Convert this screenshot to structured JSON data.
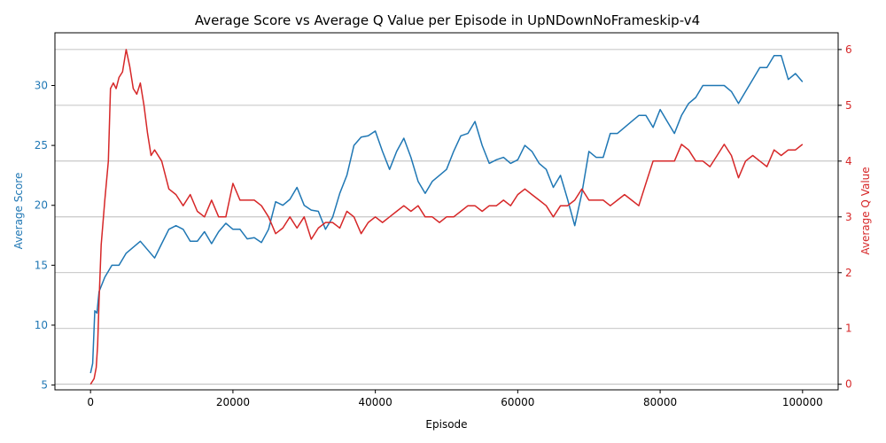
{
  "chart_data": {
    "type": "line",
    "title": "Average Score vs Average Q Value per Episode in UpNDownNoFrameskip-v4",
    "xlabel": "Episode",
    "xlim": [
      -5000,
      105000
    ],
    "xticks": [
      0,
      20000,
      40000,
      60000,
      80000,
      100000
    ],
    "xtick_labels": [
      "0",
      "20000",
      "40000",
      "60000",
      "80000",
      "100000"
    ],
    "grid": "horizontal lines on right axis",
    "legend": "none",
    "left_axis": {
      "label": "Average Score",
      "color": "#1f77b4",
      "ylim": [
        4.6,
        34.4
      ],
      "ticks": [
        5,
        10,
        15,
        20,
        25,
        30
      ],
      "tick_labels": [
        "5",
        "10",
        "15",
        "20",
        "25",
        "30"
      ]
    },
    "right_axis": {
      "label": "Average Q Value",
      "color": "#d62728",
      "ylim": [
        -0.1,
        6.3
      ],
      "ticks": [
        0,
        1,
        2,
        3,
        4,
        5,
        6
      ],
      "tick_labels": [
        "0",
        "1",
        "2",
        "3",
        "4",
        "5",
        "6"
      ]
    },
    "series": [
      {
        "axis": "left",
        "color": "#1f77b4",
        "points": [
          [
            0,
            6.0
          ],
          [
            300,
            6.8
          ],
          [
            600,
            11.2
          ],
          [
            900,
            11.0
          ],
          [
            1200,
            12.8
          ],
          [
            2000,
            14.0
          ],
          [
            3000,
            15.0
          ],
          [
            4000,
            15.0
          ],
          [
            5000,
            16.0
          ],
          [
            6000,
            16.5
          ],
          [
            7000,
            17.0
          ],
          [
            8000,
            16.3
          ],
          [
            9000,
            15.6
          ],
          [
            10000,
            16.8
          ],
          [
            11000,
            18.0
          ],
          [
            12000,
            18.3
          ],
          [
            13000,
            18.0
          ],
          [
            14000,
            17.0
          ],
          [
            15000,
            17.0
          ],
          [
            16000,
            17.8
          ],
          [
            17000,
            16.8
          ],
          [
            18000,
            17.8
          ],
          [
            19000,
            18.5
          ],
          [
            20000,
            18.0
          ],
          [
            21000,
            18.0
          ],
          [
            22000,
            17.2
          ],
          [
            23000,
            17.3
          ],
          [
            24000,
            16.9
          ],
          [
            25000,
            18.0
          ],
          [
            26000,
            20.3
          ],
          [
            27000,
            20.0
          ],
          [
            28000,
            20.5
          ],
          [
            29000,
            21.5
          ],
          [
            30000,
            20.0
          ],
          [
            31000,
            19.6
          ],
          [
            32000,
            19.5
          ],
          [
            33000,
            18.0
          ],
          [
            34000,
            19.0
          ],
          [
            35000,
            21.0
          ],
          [
            36000,
            22.5
          ],
          [
            37000,
            25.0
          ],
          [
            38000,
            25.7
          ],
          [
            39000,
            25.8
          ],
          [
            40000,
            26.2
          ],
          [
            41000,
            24.5
          ],
          [
            42000,
            23.0
          ],
          [
            43000,
            24.5
          ],
          [
            44000,
            25.6
          ],
          [
            45000,
            24.0
          ],
          [
            46000,
            22.0
          ],
          [
            47000,
            21.0
          ],
          [
            48000,
            22.0
          ],
          [
            49000,
            22.5
          ],
          [
            50000,
            23.0
          ],
          [
            51000,
            24.5
          ],
          [
            52000,
            25.8
          ],
          [
            53000,
            26.0
          ],
          [
            54000,
            27.0
          ],
          [
            55000,
            25.0
          ],
          [
            56000,
            23.5
          ],
          [
            57000,
            23.8
          ],
          [
            58000,
            24.0
          ],
          [
            59000,
            23.5
          ],
          [
            60000,
            23.8
          ],
          [
            61000,
            25.0
          ],
          [
            62000,
            24.5
          ],
          [
            63000,
            23.5
          ],
          [
            64000,
            23.0
          ],
          [
            65000,
            21.5
          ],
          [
            66000,
            22.5
          ],
          [
            67000,
            20.5
          ],
          [
            68000,
            18.3
          ],
          [
            69000,
            21.0
          ],
          [
            70000,
            24.5
          ],
          [
            71000,
            24.0
          ],
          [
            72000,
            24.0
          ],
          [
            73000,
            26.0
          ],
          [
            74000,
            26.0
          ],
          [
            75000,
            26.5
          ],
          [
            76000,
            27.0
          ],
          [
            77000,
            27.5
          ],
          [
            78000,
            27.5
          ],
          [
            79000,
            26.5
          ],
          [
            80000,
            28.0
          ],
          [
            81000,
            27.0
          ],
          [
            82000,
            26.0
          ],
          [
            83000,
            27.5
          ],
          [
            84000,
            28.5
          ],
          [
            85000,
            29.0
          ],
          [
            86000,
            30.0
          ],
          [
            87000,
            30.0
          ],
          [
            88000,
            30.0
          ],
          [
            89000,
            30.0
          ],
          [
            90000,
            29.5
          ],
          [
            91000,
            28.5
          ],
          [
            92000,
            29.5
          ],
          [
            93000,
            30.5
          ],
          [
            94000,
            31.5
          ],
          [
            95000,
            31.5
          ],
          [
            96000,
            32.5
          ],
          [
            97000,
            32.5
          ],
          [
            98000,
            30.5
          ],
          [
            99000,
            31.0
          ],
          [
            100000,
            30.3
          ]
        ]
      },
      {
        "axis": "right",
        "color": "#d62728",
        "points": [
          [
            0,
            0.0
          ],
          [
            500,
            0.1
          ],
          [
            800,
            0.3
          ],
          [
            1000,
            0.7
          ],
          [
            1200,
            1.5
          ],
          [
            1500,
            2.5
          ],
          [
            2000,
            3.3
          ],
          [
            2500,
            4.0
          ],
          [
            2800,
            5.3
          ],
          [
            3200,
            5.4
          ],
          [
            3600,
            5.3
          ],
          [
            4000,
            5.5
          ],
          [
            4500,
            5.6
          ],
          [
            5000,
            6.0
          ],
          [
            5500,
            5.7
          ],
          [
            6000,
            5.3
          ],
          [
            6500,
            5.2
          ],
          [
            7000,
            5.4
          ],
          [
            7500,
            5.0
          ],
          [
            8000,
            4.5
          ],
          [
            8500,
            4.1
          ],
          [
            9000,
            4.2
          ],
          [
            10000,
            4.0
          ],
          [
            11000,
            3.5
          ],
          [
            12000,
            3.4
          ],
          [
            13000,
            3.2
          ],
          [
            14000,
            3.4
          ],
          [
            15000,
            3.1
          ],
          [
            16000,
            3.0
          ],
          [
            17000,
            3.3
          ],
          [
            18000,
            3.0
          ],
          [
            19000,
            3.0
          ],
          [
            20000,
            3.6
          ],
          [
            21000,
            3.3
          ],
          [
            22000,
            3.3
          ],
          [
            23000,
            3.3
          ],
          [
            24000,
            3.2
          ],
          [
            25000,
            3.0
          ],
          [
            26000,
            2.7
          ],
          [
            27000,
            2.8
          ],
          [
            28000,
            3.0
          ],
          [
            29000,
            2.8
          ],
          [
            30000,
            3.0
          ],
          [
            31000,
            2.6
          ],
          [
            32000,
            2.8
          ],
          [
            33000,
            2.9
          ],
          [
            34000,
            2.9
          ],
          [
            35000,
            2.8
          ],
          [
            36000,
            3.1
          ],
          [
            37000,
            3.0
          ],
          [
            38000,
            2.7
          ],
          [
            39000,
            2.9
          ],
          [
            40000,
            3.0
          ],
          [
            41000,
            2.9
          ],
          [
            42000,
            3.0
          ],
          [
            43000,
            3.1
          ],
          [
            44000,
            3.2
          ],
          [
            45000,
            3.1
          ],
          [
            46000,
            3.2
          ],
          [
            47000,
            3.0
          ],
          [
            48000,
            3.0
          ],
          [
            49000,
            2.9
          ],
          [
            50000,
            3.0
          ],
          [
            51000,
            3.0
          ],
          [
            52000,
            3.1
          ],
          [
            53000,
            3.2
          ],
          [
            54000,
            3.2
          ],
          [
            55000,
            3.1
          ],
          [
            56000,
            3.2
          ],
          [
            57000,
            3.2
          ],
          [
            58000,
            3.3
          ],
          [
            59000,
            3.2
          ],
          [
            60000,
            3.4
          ],
          [
            61000,
            3.5
          ],
          [
            62000,
            3.4
          ],
          [
            63000,
            3.3
          ],
          [
            64000,
            3.2
          ],
          [
            65000,
            3.0
          ],
          [
            66000,
            3.2
          ],
          [
            67000,
            3.2
          ],
          [
            68000,
            3.3
          ],
          [
            69000,
            3.5
          ],
          [
            70000,
            3.3
          ],
          [
            71000,
            3.3
          ],
          [
            72000,
            3.3
          ],
          [
            73000,
            3.2
          ],
          [
            74000,
            3.3
          ],
          [
            75000,
            3.4
          ],
          [
            76000,
            3.3
          ],
          [
            77000,
            3.2
          ],
          [
            78000,
            3.6
          ],
          [
            79000,
            4.0
          ],
          [
            80000,
            4.0
          ],
          [
            81000,
            4.0
          ],
          [
            82000,
            4.0
          ],
          [
            83000,
            4.3
          ],
          [
            84000,
            4.2
          ],
          [
            85000,
            4.0
          ],
          [
            86000,
            4.0
          ],
          [
            87000,
            3.9
          ],
          [
            88000,
            4.1
          ],
          [
            89000,
            4.3
          ],
          [
            90000,
            4.1
          ],
          [
            91000,
            3.7
          ],
          [
            92000,
            4.0
          ],
          [
            93000,
            4.1
          ],
          [
            94000,
            4.0
          ],
          [
            95000,
            3.9
          ],
          [
            96000,
            4.2
          ],
          [
            97000,
            4.1
          ],
          [
            98000,
            4.2
          ],
          [
            99000,
            4.2
          ],
          [
            100000,
            4.3
          ]
        ]
      }
    ]
  }
}
